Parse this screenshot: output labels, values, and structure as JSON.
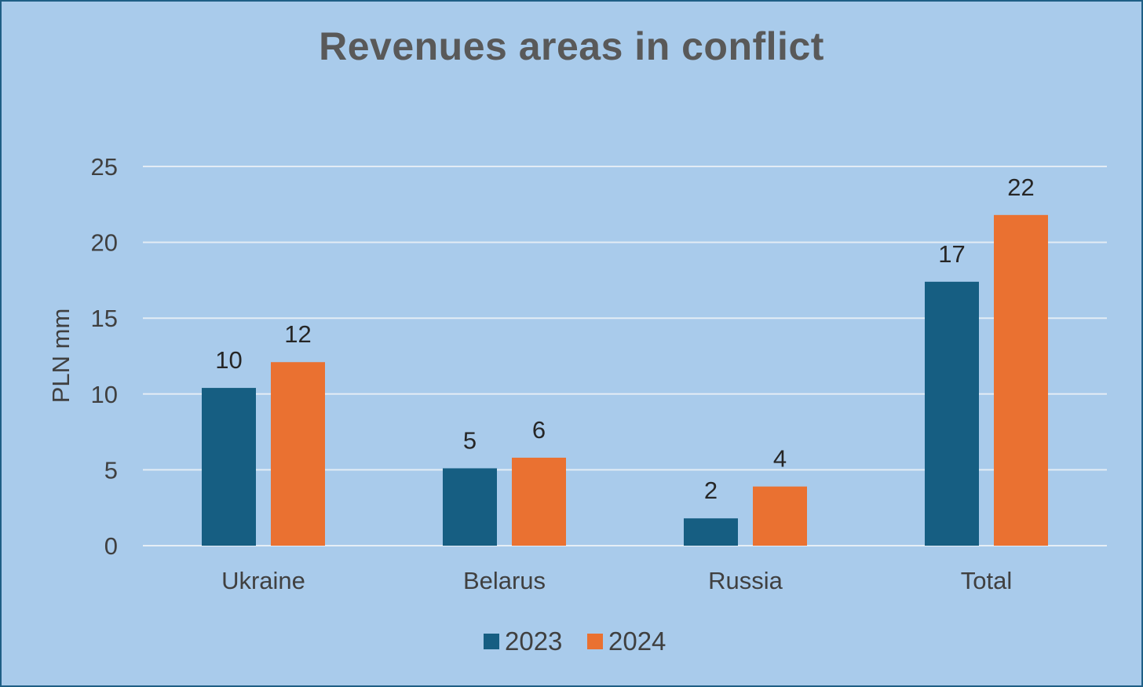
{
  "chart_data": {
    "type": "bar",
    "title": "Revenues areas in conflict",
    "ylabel": "PLN mm",
    "xlabel": "",
    "categories": [
      "Ukraine",
      "Belarus",
      "Russia",
      "Total"
    ],
    "series": [
      {
        "name": "2023",
        "color": "#165e82",
        "values": [
          10.4,
          5.1,
          1.8,
          17.4
        ],
        "labels": [
          "10",
          "5",
          "2",
          "17"
        ]
      },
      {
        "name": "2024",
        "color": "#ea7131",
        "values": [
          12.1,
          5.8,
          3.9,
          21.8
        ],
        "labels": [
          "12",
          "6",
          "4",
          "22"
        ]
      }
    ],
    "ylim": [
      0,
      25
    ],
    "yticks": [
      "0",
      "5",
      "10",
      "15",
      "20",
      "25"
    ],
    "grid": true,
    "legend_position": "bottom"
  }
}
